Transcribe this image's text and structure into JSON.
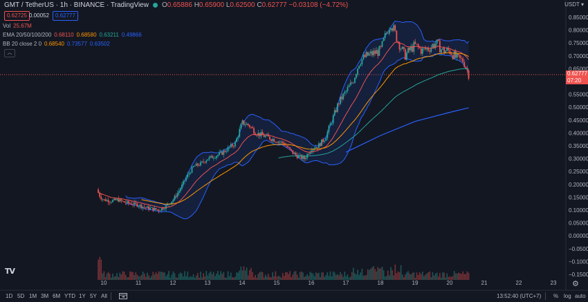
{
  "header": {
    "symbol": "GMT / TetherUS · 1h · BINANCE · TradingView",
    "open_label": "O",
    "open": "0.65886",
    "high_label": "H",
    "high": "0.65900",
    "low_label": "L",
    "low": "0.62500",
    "close_label": "C",
    "close": "0.62777",
    "change": "−0.03108 (−4.72%)",
    "bid": "0.62725",
    "spread": "0.00052",
    "ask": "0.62777"
  },
  "indicators": {
    "vol_label": "Vol",
    "vol_value": "25.67M",
    "ema_label": "EMA 20/50/100/200",
    "ema_20": "0.68110",
    "ema_50": "0.68580",
    "ema_100": "0.63211",
    "ema_200": "0.49866",
    "bb_label": "BB 20 close 2 0",
    "bb_basis": "0.68540",
    "bb_upper": "0.73577",
    "bb_lower": "0.63502",
    "collapse_icon": "chevron-up-icon"
  },
  "price_axis": {
    "currency": "USDT",
    "current_price": "0.62777",
    "countdown": "07:20",
    "ticks": [
      "0.85000",
      "0.80000",
      "0.75000",
      "0.70000",
      "0.65000",
      "0.55000",
      "0.50000",
      "0.45000",
      "0.40000",
      "0.35000",
      "0.30000",
      "0.25000",
      "0.20000",
      "0.15000",
      "0.10000",
      "0.05000",
      "0.00000",
      "−0.05000",
      "−0.10000",
      "−0.15000"
    ]
  },
  "time_axis": {
    "ticks": [
      "10",
      "11",
      "12",
      "13",
      "14",
      "15",
      "16",
      "17",
      "18",
      "19",
      "20",
      "21",
      "22",
      "23"
    ]
  },
  "bottom_bar": {
    "timeframes": [
      "1D",
      "5D",
      "1M",
      "3M",
      "6M",
      "YTD",
      "1Y",
      "5Y",
      "All"
    ],
    "goto_icon": "calendar-range-icon",
    "clock": "13:52:40 (UTC+7)",
    "percent": "%",
    "log": "log",
    "auto": "auto"
  },
  "logo": "TV",
  "settings_icon": "gear-icon",
  "colors": {
    "background": "#131722",
    "up": "#26a69a",
    "down": "#ef5350",
    "ema20": "#ef5350",
    "ema50": "#ff9800",
    "ema100": "#26a69a",
    "ema200": "#2962ff",
    "bb": "#2962ff"
  },
  "chart_data": {
    "type": "line",
    "title": "GMT / TetherUS · 1h · BINANCE",
    "x_label": "",
    "y_label": "",
    "y_range": [
      -0.15,
      0.87
    ],
    "x_range": [
      9.7,
      23.2
    ],
    "series": [
      {
        "name": "Price",
        "x": [
          9.8,
          9.9,
          10.0,
          10.2,
          10.4,
          10.6,
          10.8,
          11.0,
          11.2,
          11.4,
          11.6,
          11.8,
          12.0,
          12.2,
          12.4,
          12.6,
          12.8,
          13.0,
          13.2,
          13.4,
          13.6,
          13.8,
          14.0,
          14.2,
          14.4,
          14.6,
          14.8,
          15.0,
          15.2,
          15.4,
          15.6,
          15.8,
          16.0,
          16.2,
          16.4,
          16.6,
          16.8,
          17.0,
          17.2,
          17.4,
          17.6,
          17.8,
          18.0,
          18.2,
          18.3,
          18.5,
          18.7,
          18.9,
          19.0,
          19.2,
          19.4,
          19.6,
          19.8,
          20.0,
          20.2,
          20.4,
          20.55
        ],
        "values": [
          0.18,
          0.15,
          0.14,
          0.135,
          0.14,
          0.13,
          0.125,
          0.12,
          0.11,
          0.105,
          0.1,
          0.115,
          0.14,
          0.18,
          0.23,
          0.27,
          0.28,
          0.3,
          0.31,
          0.32,
          0.34,
          0.36,
          0.44,
          0.43,
          0.4,
          0.39,
          0.38,
          0.37,
          0.36,
          0.33,
          0.31,
          0.3,
          0.34,
          0.35,
          0.38,
          0.45,
          0.52,
          0.56,
          0.6,
          0.68,
          0.7,
          0.71,
          0.72,
          0.8,
          0.83,
          0.76,
          0.7,
          0.73,
          0.74,
          0.72,
          0.73,
          0.75,
          0.72,
          0.72,
          0.69,
          0.68,
          0.628
        ]
      },
      {
        "name": "EMA 20"
      },
      {
        "name": "EMA 50"
      },
      {
        "name": "EMA 100"
      },
      {
        "name": "EMA 200",
        "x": [
          17.0,
          18.0,
          19.0,
          20.0,
          20.55
        ],
        "values": [
          0.325,
          0.39,
          0.445,
          0.48,
          0.498
        ]
      },
      {
        "name": "BB upper"
      },
      {
        "name": "BB lower"
      }
    ]
  }
}
